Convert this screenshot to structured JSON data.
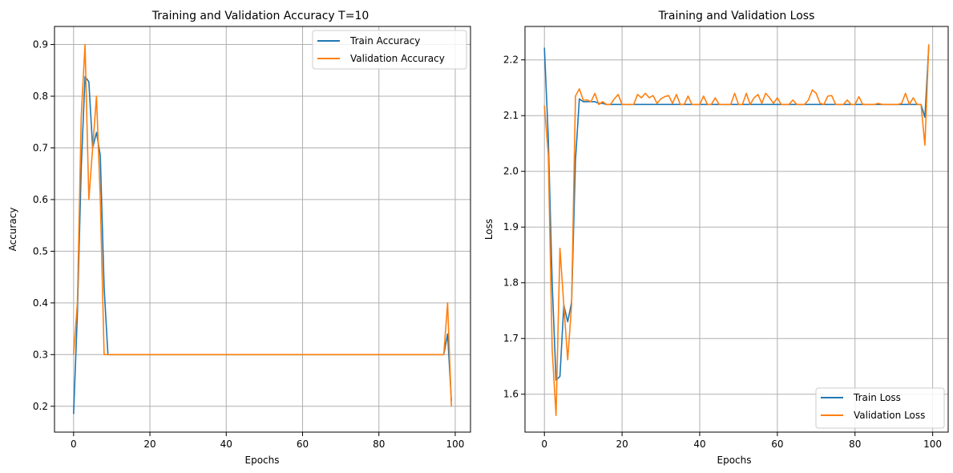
{
  "colors": {
    "series1": "#1f77b4",
    "series2": "#ff7f0e",
    "grid": "#b0b0b0",
    "axis": "#000000"
  },
  "chart_data": [
    {
      "type": "line",
      "title": "Training and Validation Accuracy T=10",
      "xlabel": "Epochs",
      "ylabel": "Accuracy",
      "xlim": [
        -5,
        104
      ],
      "ylim": [
        0.15,
        0.935
      ],
      "xticks": [
        0,
        20,
        40,
        60,
        80,
        100
      ],
      "yticks": [
        0.2,
        0.3,
        0.4,
        0.5,
        0.6,
        0.7,
        0.8,
        0.9
      ],
      "xtick_labels": [
        "0",
        "20",
        "40",
        "60",
        "80",
        "100"
      ],
      "ytick_labels": [
        "0.2",
        "0.3",
        "0.4",
        "0.5",
        "0.6",
        "0.7",
        "0.8",
        "0.9"
      ],
      "grid": true,
      "legend_position": "upper right",
      "series": [
        {
          "name": "Train Accuracy",
          "color": "#1f77b4",
          "x": [
            0,
            1,
            2,
            3,
            4,
            5,
            6,
            7,
            8,
            9,
            10,
            12,
            14,
            16,
            18,
            20,
            22,
            24,
            26,
            28,
            30,
            32,
            34,
            36,
            38,
            40,
            42,
            44,
            46,
            48,
            50,
            52,
            54,
            56,
            58,
            60,
            62,
            64,
            66,
            68,
            70,
            72,
            74,
            76,
            78,
            80,
            82,
            84,
            86,
            88,
            90,
            92,
            94,
            96,
            97,
            98,
            99
          ],
          "y": [
            0.185,
            0.38,
            0.66,
            0.838,
            0.828,
            0.7,
            0.73,
            0.685,
            0.43,
            0.3,
            0.3,
            0.3,
            0.3,
            0.3,
            0.3,
            0.3,
            0.3,
            0.3,
            0.3,
            0.3,
            0.3,
            0.3,
            0.3,
            0.3,
            0.3,
            0.3,
            0.3,
            0.3,
            0.3,
            0.3,
            0.3,
            0.3,
            0.3,
            0.3,
            0.3,
            0.3,
            0.3,
            0.3,
            0.3,
            0.3,
            0.3,
            0.3,
            0.3,
            0.3,
            0.3,
            0.3,
            0.3,
            0.3,
            0.3,
            0.3,
            0.3,
            0.3,
            0.3,
            0.3,
            0.3,
            0.34,
            0.21
          ]
        },
        {
          "name": "Validation Accuracy",
          "color": "#ff7f0e",
          "x": [
            0,
            1,
            2,
            3,
            4,
            5,
            6,
            7,
            8,
            9,
            10,
            12,
            14,
            16,
            18,
            20,
            22,
            24,
            26,
            28,
            30,
            32,
            34,
            36,
            38,
            40,
            42,
            44,
            46,
            48,
            50,
            52,
            54,
            56,
            58,
            60,
            62,
            64,
            66,
            68,
            70,
            72,
            74,
            76,
            78,
            80,
            82,
            84,
            86,
            88,
            90,
            92,
            94,
            96,
            97,
            98,
            99
          ],
          "y": [
            0.3,
            0.4,
            0.76,
            0.9,
            0.6,
            0.7,
            0.8,
            0.6,
            0.3,
            0.3,
            0.3,
            0.3,
            0.3,
            0.3,
            0.3,
            0.3,
            0.3,
            0.3,
            0.3,
            0.3,
            0.3,
            0.3,
            0.3,
            0.3,
            0.3,
            0.3,
            0.3,
            0.3,
            0.3,
            0.3,
            0.3,
            0.3,
            0.3,
            0.3,
            0.3,
            0.3,
            0.3,
            0.3,
            0.3,
            0.3,
            0.3,
            0.3,
            0.3,
            0.3,
            0.3,
            0.3,
            0.3,
            0.3,
            0.3,
            0.3,
            0.3,
            0.3,
            0.3,
            0.3,
            0.3,
            0.4,
            0.2
          ]
        }
      ]
    },
    {
      "type": "line",
      "title": "Training and Validation Loss",
      "xlabel": "Epochs",
      "ylabel": "Loss",
      "xlim": [
        -5,
        104
      ],
      "ylim": [
        1.532,
        2.26
      ],
      "xticks": [
        0,
        20,
        40,
        60,
        80,
        100
      ],
      "yticks": [
        1.6,
        1.7,
        1.8,
        1.9,
        2.0,
        2.1,
        2.2
      ],
      "xtick_labels": [
        "0",
        "20",
        "40",
        "60",
        "80",
        "100"
      ],
      "ytick_labels": [
        "1.6",
        "1.7",
        "1.8",
        "1.9",
        "2.0",
        "2.1",
        "2.2"
      ],
      "grid": true,
      "legend_position": "lower right",
      "series": [
        {
          "name": "Train Loss",
          "color": "#1f77b4",
          "x": [
            0,
            1,
            2,
            3,
            4,
            5,
            6,
            7,
            8,
            9,
            10,
            11,
            12,
            13,
            14,
            15,
            16,
            18,
            20,
            25,
            30,
            35,
            40,
            45,
            50,
            55,
            60,
            65,
            70,
            75,
            80,
            85,
            90,
            95,
            96,
            97,
            98,
            99
          ],
          "y": [
            2.222,
            2.06,
            1.8,
            1.625,
            1.632,
            1.76,
            1.73,
            1.765,
            2.02,
            2.13,
            2.125,
            2.125,
            2.125,
            2.125,
            2.122,
            2.122,
            2.12,
            2.12,
            2.12,
            2.12,
            2.12,
            2.12,
            2.12,
            2.12,
            2.12,
            2.12,
            2.12,
            2.12,
            2.12,
            2.12,
            2.12,
            2.12,
            2.12,
            2.12,
            2.12,
            2.12,
            2.097,
            2.225
          ]
        },
        {
          "name": "Validation Loss",
          "color": "#ff7f0e",
          "x": [
            0,
            1,
            2,
            3,
            4,
            5,
            6,
            7,
            8,
            9,
            10,
            11,
            12,
            13,
            14,
            15,
            16,
            17,
            18,
            19,
            20,
            21,
            22,
            23,
            24,
            25,
            26,
            27,
            28,
            29,
            30,
            31,
            32,
            33,
            34,
            35,
            36,
            37,
            38,
            39,
            40,
            41,
            42,
            43,
            44,
            45,
            46,
            47,
            48,
            49,
            50,
            51,
            52,
            53,
            54,
            55,
            56,
            57,
            58,
            59,
            60,
            61,
            62,
            63,
            64,
            65,
            66,
            67,
            68,
            69,
            70,
            71,
            72,
            73,
            74,
            75,
            76,
            77,
            78,
            79,
            80,
            81,
            82,
            83,
            84,
            85,
            86,
            87,
            88,
            89,
            90,
            91,
            92,
            93,
            94,
            95,
            96,
            97,
            98,
            99
          ],
          "y": [
            2.118,
            2.03,
            1.68,
            1.562,
            1.862,
            1.76,
            1.662,
            1.76,
            2.135,
            2.148,
            2.128,
            2.128,
            2.125,
            2.14,
            2.12,
            2.125,
            2.12,
            2.12,
            2.13,
            2.138,
            2.12,
            2.12,
            2.12,
            2.12,
            2.138,
            2.132,
            2.14,
            2.132,
            2.136,
            2.122,
            2.13,
            2.134,
            2.136,
            2.122,
            2.138,
            2.12,
            2.12,
            2.135,
            2.12,
            2.12,
            2.12,
            2.135,
            2.12,
            2.12,
            2.132,
            2.12,
            2.12,
            2.12,
            2.12,
            2.14,
            2.12,
            2.12,
            2.14,
            2.12,
            2.132,
            2.138,
            2.122,
            2.14,
            2.132,
            2.122,
            2.132,
            2.12,
            2.12,
            2.12,
            2.128,
            2.12,
            2.12,
            2.12,
            2.128,
            2.146,
            2.14,
            2.122,
            2.12,
            2.135,
            2.136,
            2.12,
            2.12,
            2.12,
            2.128,
            2.12,
            2.12,
            2.134,
            2.12,
            2.12,
            2.12,
            2.12,
            2.122,
            2.12,
            2.12,
            2.12,
            2.12,
            2.12,
            2.122,
            2.14,
            2.12,
            2.132,
            2.12,
            2.12,
            2.047,
            2.228
          ]
        }
      ]
    }
  ]
}
